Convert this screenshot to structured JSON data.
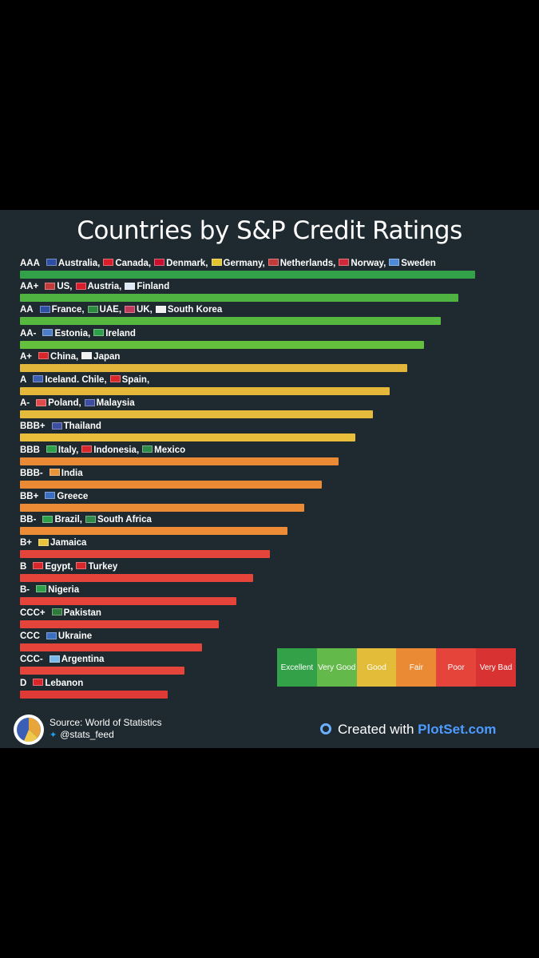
{
  "chart_data": {
    "type": "bar",
    "orientation": "horizontal",
    "title": "Countries by S&P Credit Ratings",
    "value_kind": "rating_rank",
    "rows": [
      {
        "rating": "AAA",
        "rank": 21,
        "countries": "Australia, Canada, Denmark, Germany, Netherlands, Norway, Sweden",
        "color": "#33a148",
        "flags": [
          "#2e4ea3",
          "#d81e2a",
          "#c8102e",
          "#e2c42f",
          "#c23a3a",
          "#cf2a3a",
          "#4e8bd6"
        ]
      },
      {
        "rating": "AA+",
        "rank": 20,
        "countries": "US, Austria, Finland",
        "color": "#4fb342",
        "flags": [
          "#c23a3a",
          "#d81e2a",
          "#dfe8f5"
        ]
      },
      {
        "rating": "AA",
        "rank": 19,
        "countries": "France, UAE, UK, South Korea",
        "color": "#57b83f",
        "flags": [
          "#2f4fa5",
          "#2b8a3e",
          "#c23a5a",
          "#f0f0f0"
        ]
      },
      {
        "rating": "AA-",
        "rank": 18,
        "countries": "Estonia, Ireland",
        "color": "#64bf3d",
        "flags": [
          "#4d7cc8",
          "#2fa04a"
        ]
      },
      {
        "rating": "A+",
        "rank": 17,
        "countries": "China, Japan",
        "color": "#e2b63a",
        "flags": [
          "#d8262a",
          "#f0f0f0"
        ]
      },
      {
        "rating": "A",
        "rank": 16,
        "countries": "Iceland. Chile, Spain,",
        "color": "#e5b83a",
        "flags": [
          "#3c5fb0",
          "#d8262a",
          "#e0a83a"
        ]
      },
      {
        "rating": "A-",
        "rank": 15,
        "countries": "Poland, Malaysia",
        "color": "#e6bb3b",
        "flags": [
          "#e04a4a",
          "#3d4ea0"
        ]
      },
      {
        "rating": "BBB+",
        "rank": 14,
        "countries": "Thailand",
        "color": "#e8be3b",
        "flags": [
          "#3d4ea0"
        ]
      },
      {
        "rating": "BBB",
        "rank": 13,
        "countries": "Italy, Indonesia, Mexico",
        "color": "#ea8a35",
        "flags": [
          "#2fa04a",
          "#d8262a",
          "#2f8a4a"
        ]
      },
      {
        "rating": "BBB-",
        "rank": 12,
        "countries": "India",
        "color": "#ea8a35",
        "flags": [
          "#e8953a"
        ]
      },
      {
        "rating": "BB+",
        "rank": 11,
        "countries": "Greece",
        "color": "#eb8b36",
        "flags": [
          "#3a6fc2"
        ]
      },
      {
        "rating": "BB-",
        "rank": 10,
        "countries": "Brazil, South Africa",
        "color": "#ec8c37",
        "flags": [
          "#2fa04a",
          "#2f8a4a"
        ]
      },
      {
        "rating": "B+",
        "rank": 9,
        "countries": "Jamaica",
        "color": "#e4443a",
        "flags": [
          "#e8c43a"
        ]
      },
      {
        "rating": "B",
        "rank": 8,
        "countries": "Egypt, Turkey",
        "color": "#e4443a",
        "flags": [
          "#d8262a",
          "#d8262a"
        ]
      },
      {
        "rating": "B-",
        "rank": 7,
        "countries": "Nigeria",
        "color": "#e4443a",
        "flags": [
          "#2fa04a"
        ]
      },
      {
        "rating": "CCC+",
        "rank": 6,
        "countries": "Pakistan",
        "color": "#e4443a",
        "flags": [
          "#2f7a3a"
        ]
      },
      {
        "rating": "CCC",
        "rank": 5,
        "countries": "Ukraine",
        "color": "#e4443a",
        "flags": [
          "#3a6fc2"
        ]
      },
      {
        "rating": "CCC-",
        "rank": 4,
        "countries": "Argentina",
        "color": "#e4443a",
        "flags": [
          "#7ab8e8"
        ]
      },
      {
        "rating": "D",
        "rank": 3,
        "countries": "Lebanon",
        "color": "#e03a36",
        "flags": [
          "#d8262a"
        ]
      }
    ],
    "legend": [
      {
        "label": "Excellent",
        "color": "#33a148"
      },
      {
        "label": "Very Good",
        "color": "#63b94a"
      },
      {
        "label": "Good",
        "color": "#e3bd3a"
      },
      {
        "label": "Fair",
        "color": "#ea8a35"
      },
      {
        "label": "Poor",
        "color": "#e4443a"
      },
      {
        "label": "Very Bad",
        "color": "#d83232"
      }
    ],
    "legend_position": "bottom-right",
    "grid": false
  },
  "footer": {
    "source": "Source: World of Statistics",
    "handle": "@stats_feed",
    "created_prefix": "Created with",
    "brand": "PlotSet.com"
  },
  "colors": {
    "background": "#1f2a30",
    "page": "#000000",
    "title": "#ffffff"
  }
}
